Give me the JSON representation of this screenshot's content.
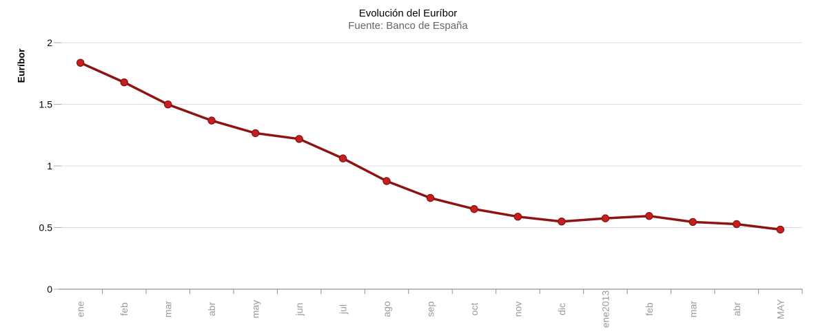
{
  "chart_data": {
    "type": "line",
    "title": "Evolución del Euríbor",
    "subtitle": "Fuente: Banco de España",
    "ylabel": "Euríbor",
    "xlabel": "",
    "series_name": "Euríbor",
    "categories": [
      "ene",
      "feb",
      "mar",
      "abr",
      "may",
      "jun",
      "jul",
      "ago",
      "sep",
      "oct",
      "nov",
      "dic",
      "ene2013",
      "feb",
      "mar",
      "abr",
      "MAY"
    ],
    "values": [
      1.837,
      1.678,
      1.499,
      1.368,
      1.266,
      1.219,
      1.061,
      0.877,
      0.74,
      0.65,
      0.588,
      0.549,
      0.575,
      0.594,
      0.545,
      0.528,
      0.484
    ],
    "ylim": [
      0,
      2
    ],
    "y_ticks": [
      0,
      0.5,
      1,
      1.5,
      2
    ],
    "y_tick_labels": [
      "0",
      "0.5",
      "1",
      "1.5",
      "2"
    ],
    "grid": true,
    "legend": "none",
    "x_labels_rotated_degrees": -90,
    "colors": {
      "line": "#8e1414",
      "marker": "#c41e1e",
      "marker_edge": "#7a0d0d",
      "grid": "#dddddd",
      "axis": "#909090",
      "x_label": "#999999",
      "y_label": "#000000",
      "title": "#000000",
      "subtitle": "#666666"
    }
  }
}
